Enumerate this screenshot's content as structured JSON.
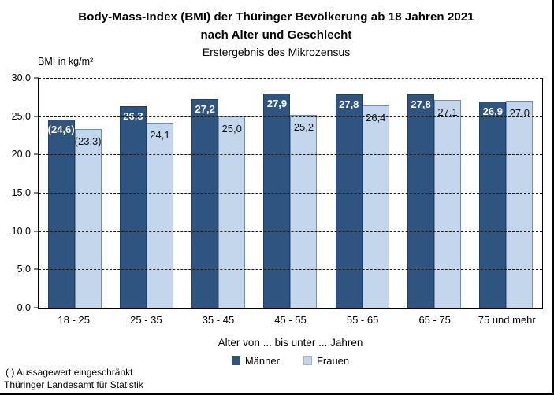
{
  "header": {
    "title_line1": "Body-Mass-Index (BMI) der Thüringer Bevölkerung ab 18 Jahren 2021",
    "title_line2": "nach Alter und Geschlecht",
    "subtitle": "Erstergebnis des Mikrozensus"
  },
  "footer": {
    "note1": "( )  Aussagewert eingeschränkt",
    "note2": "Thüringer Landesamt für Statistik"
  },
  "chart_data": {
    "type": "bar",
    "title": "Body-Mass-Index (BMI) der Thüringer Bevölkerung ab 18 Jahren 2021 nach Alter und Geschlecht — Erstergebnis des Mikrozensus",
    "ylabel": "BMI in kg/m²",
    "xlabel": "Alter von ... bis unter ... Jahren",
    "ylim": [
      0,
      30
    ],
    "ytick_values": [
      30,
      25,
      20,
      15,
      10,
      5,
      0
    ],
    "ytick_labels": [
      "30,0",
      "25,0",
      "20,0",
      "15,0",
      "10,0",
      "5,0",
      "0,0"
    ],
    "grid": "dashed horizontal lines at each 5 kg/m²",
    "legend_position": "bottom center",
    "categories": [
      "18 - 25",
      "25 - 35",
      "35 - 45",
      "45 - 55",
      "55 - 65",
      "65 - 75",
      "75 und mehr"
    ],
    "series": [
      {
        "name": "Männer",
        "color": "#2F5480",
        "values": [
          24.6,
          26.3,
          27.2,
          27.9,
          27.8,
          27.8,
          26.9
        ],
        "labels": [
          "(24,6)",
          "26,3",
          "27,2",
          "27,9",
          "27,8",
          "27,8",
          "26,9"
        ]
      },
      {
        "name": "Frauen",
        "color": "#C3D6EC",
        "values": [
          23.3,
          24.1,
          25.0,
          25.2,
          26.4,
          27.1,
          27.0
        ],
        "labels": [
          "(23,3)",
          "24,1",
          "25,0",
          "25,2",
          "26,4",
          "27,1",
          "27,0"
        ]
      }
    ]
  }
}
